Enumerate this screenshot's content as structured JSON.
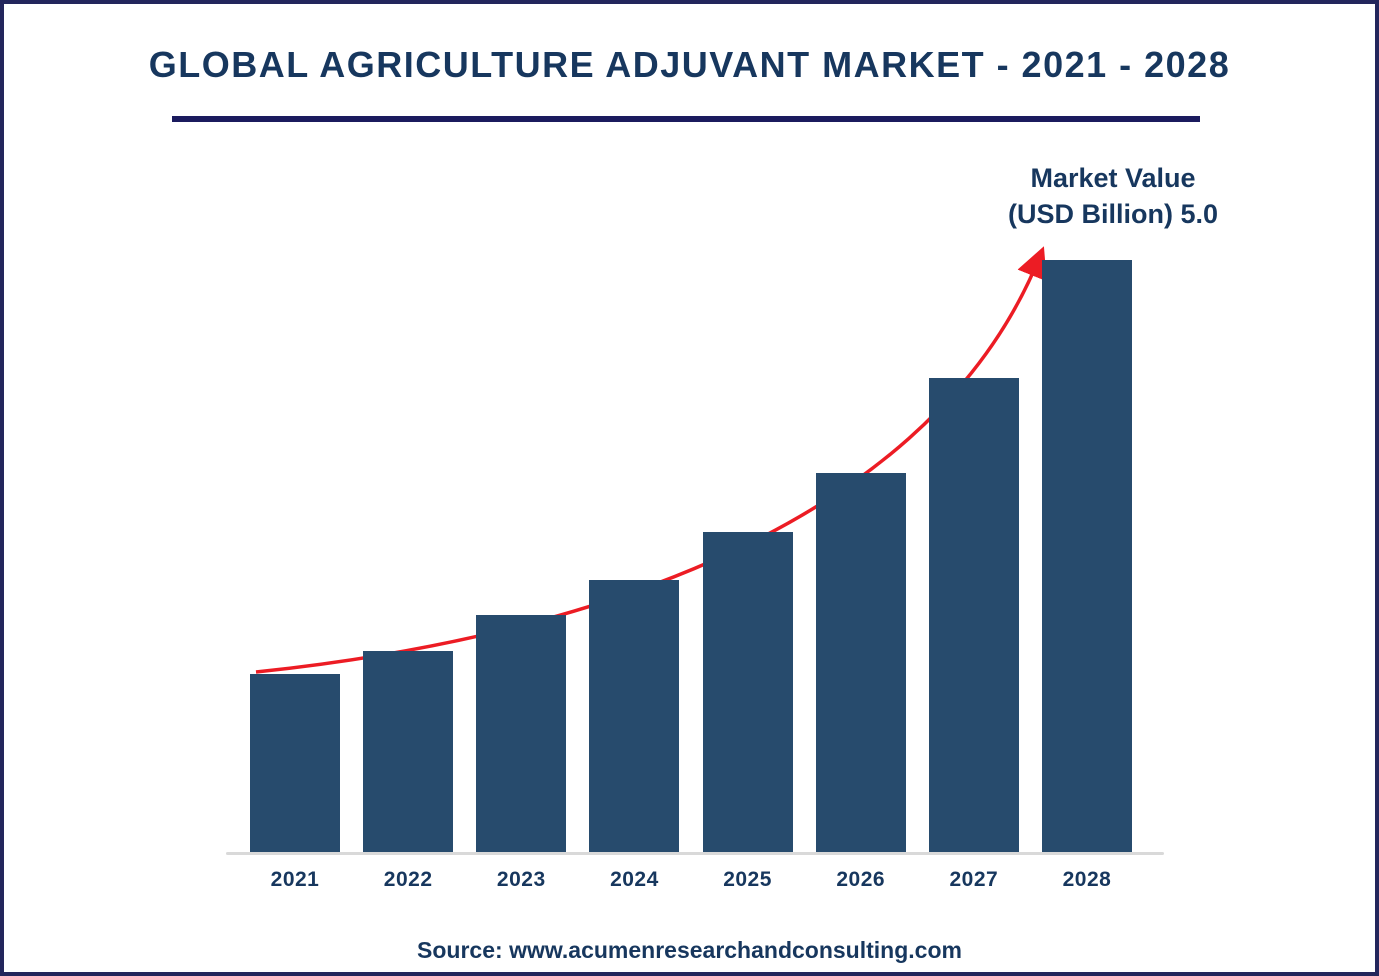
{
  "title": {
    "text": "GLOBAL AGRICULTURE ADJUVANT MARKET - 2021 - 2028",
    "color": "#17375e",
    "underline_color": "#1b1b5e"
  },
  "annotation": {
    "line1": "Market Value",
    "line2": "(USD Billion) 5.0"
  },
  "source": {
    "text": "Source: www.acumenresearchandconsulting.com"
  },
  "chart_data": {
    "type": "bar",
    "title": "Global Agriculture Adjuvant Market - 2021 - 2028",
    "categories": [
      "2021",
      "2022",
      "2023",
      "2024",
      "2025",
      "2026",
      "2027",
      "2028"
    ],
    "values": [
      1.5,
      1.7,
      2.0,
      2.3,
      2.7,
      3.2,
      4.0,
      5.0
    ],
    "xlabel": "",
    "ylabel": "",
    "ylim": [
      0,
      5.0
    ],
    "grid": false,
    "legend_position": "none",
    "bar_color": "#274b6d",
    "trend_arrow_color": "#ec1c24",
    "annotations": [
      "Market Value (USD Billion) 5.0"
    ]
  }
}
